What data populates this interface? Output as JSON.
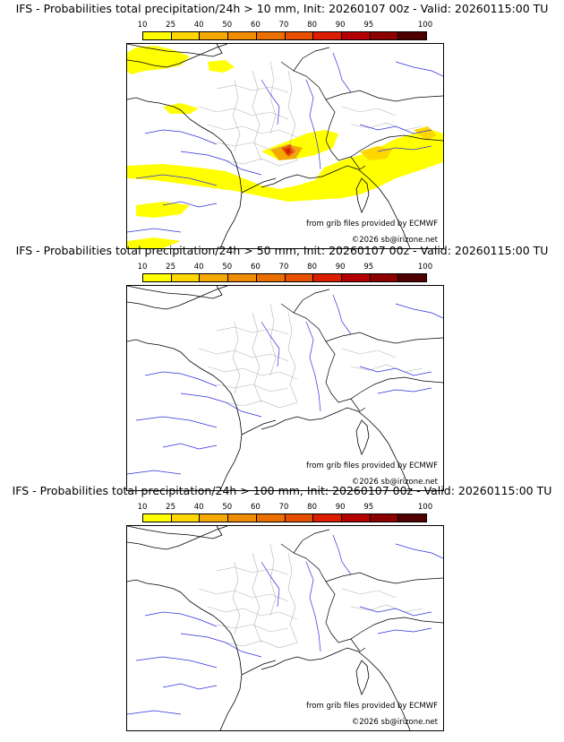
{
  "colorbar": {
    "ticks": [
      "10",
      "25",
      "40",
      "50",
      "60",
      "70",
      "80",
      "90",
      "95",
      "100"
    ],
    "colors": [
      "#ffff00",
      "#ffd700",
      "#f4a800",
      "#f08c00",
      "#eb6e00",
      "#e65000",
      "#dc1e00",
      "#b40000",
      "#8c0000",
      "#500000"
    ]
  },
  "credits": {
    "source": "from grib files provided by ECMWF",
    "copyright": "©2026 sb@irizone.net"
  },
  "panels": [
    {
      "title": "IFS - Probabilities total precipitation/24h > 10 mm, Init: 20260107 00z - Valid: 20260115:00 TU",
      "threshold_mm": 10,
      "has_precip": true
    },
    {
      "title": "IFS - Probabilities total precipitation/24h > 50 mm, Init: 20260107 00z - Valid: 20260115:00 TU",
      "threshold_mm": 50,
      "has_precip": false
    },
    {
      "title": "IFS - Probabilities total precipitation/24h > 100 mm, Init: 20260107 00z - Valid: 20260115:00 TU",
      "threshold_mm": 100,
      "has_precip": false
    }
  ]
}
